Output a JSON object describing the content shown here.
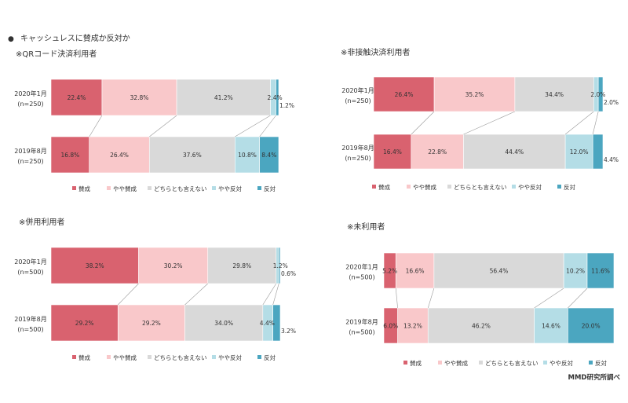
{
  "page": {
    "heading_bullet": "●",
    "heading": "キャッシュレスに賛成か反対か",
    "source": "MMD研究所調べ"
  },
  "legend": [
    "賛成",
    "やや賛成",
    "どちらとも言えない",
    "やや反対",
    "反対"
  ],
  "colors": [
    "#d9626f",
    "#f9c8ca",
    "#d9d9d9",
    "#b4dde6",
    "#4ba6c0"
  ],
  "chart_data": [
    {
      "type": "bar",
      "orientation": "horizontal",
      "stacked": "100%",
      "title": "※QRコード決済利用者",
      "categories": [
        {
          "line1": "2020年1月",
          "line2": "(n=250)"
        },
        {
          "line1": "2019年8月",
          "line2": "(n=250)"
        }
      ],
      "series": [
        {
          "name": "賛成",
          "values": [
            22.4,
            16.8
          ]
        },
        {
          "name": "やや賛成",
          "values": [
            32.8,
            26.4
          ]
        },
        {
          "name": "どちらとも言えない",
          "values": [
            41.2,
            37.6
          ]
        },
        {
          "name": "やや反対",
          "values": [
            2.4,
            10.8
          ]
        },
        {
          "name": "反対",
          "values": [
            1.2,
            8.4
          ]
        }
      ],
      "labels": [
        [
          "22.4%",
          "32.8%",
          "41.2%",
          "2.4%",
          "1.2%"
        ],
        [
          "16.8%",
          "26.4%",
          "37.6%",
          "10.8%",
          "8.4%"
        ]
      ]
    },
    {
      "type": "bar",
      "orientation": "horizontal",
      "stacked": "100%",
      "title": "※非接触決済利用者",
      "categories": [
        {
          "line1": "2020年1月",
          "line2": "(n=250)"
        },
        {
          "line1": "2019年8月",
          "line2": "(n=250)"
        }
      ],
      "series": [
        {
          "name": "賛成",
          "values": [
            26.4,
            16.4
          ]
        },
        {
          "name": "やや賛成",
          "values": [
            35.2,
            22.8
          ]
        },
        {
          "name": "どちらとも言えない",
          "values": [
            34.4,
            44.4
          ]
        },
        {
          "name": "やや反対",
          "values": [
            2.0,
            12.0
          ]
        },
        {
          "name": "反対",
          "values": [
            2.0,
            4.4
          ]
        }
      ],
      "labels": [
        [
          "26.4%",
          "35.2%",
          "34.4%",
          "2.0%",
          "2.0%"
        ],
        [
          "16.4%",
          "22.8%",
          "44.4%",
          "12.0%",
          "4.4%"
        ]
      ]
    },
    {
      "type": "bar",
      "orientation": "horizontal",
      "stacked": "100%",
      "title": "※併用利用者",
      "categories": [
        {
          "line1": "2020年1月",
          "line2": "(n=500)"
        },
        {
          "line1": "2019年8月",
          "line2": "(n=500)"
        }
      ],
      "series": [
        {
          "name": "賛成",
          "values": [
            38.2,
            29.2
          ]
        },
        {
          "name": "やや賛成",
          "values": [
            30.2,
            29.2
          ]
        },
        {
          "name": "どちらとも言えない",
          "values": [
            29.8,
            34.0
          ]
        },
        {
          "name": "やや反対",
          "values": [
            1.2,
            4.4
          ]
        },
        {
          "name": "反対",
          "values": [
            0.6,
            3.2
          ]
        }
      ],
      "labels": [
        [
          "38.2%",
          "30.2%",
          "29.8%",
          "1.2%",
          "0.6%"
        ],
        [
          "29.2%",
          "29.2%",
          "34.0%",
          "4.4%",
          "3.2%"
        ]
      ]
    },
    {
      "type": "bar",
      "orientation": "horizontal",
      "stacked": "100%",
      "title": "※未利用者",
      "categories": [
        {
          "line1": "2020年1月",
          "line2": "(n=500)"
        },
        {
          "line1": "2019年8月",
          "line2": "(n=500)"
        }
      ],
      "series": [
        {
          "name": "賛成",
          "values": [
            5.2,
            6.0
          ]
        },
        {
          "name": "やや賛成",
          "values": [
            16.6,
            13.2
          ]
        },
        {
          "name": "どちらとも言えない",
          "values": [
            56.4,
            46.2
          ]
        },
        {
          "name": "やや反対",
          "values": [
            10.2,
            14.6
          ]
        },
        {
          "name": "反対",
          "values": [
            11.6,
            20.0
          ]
        }
      ],
      "labels": [
        [
          "5.2%",
          "16.6%",
          "56.4%",
          "10.2%",
          "11.6%"
        ],
        [
          "6.0%",
          "13.2%",
          "46.2%",
          "14.6%",
          "20.0%"
        ]
      ]
    }
  ]
}
